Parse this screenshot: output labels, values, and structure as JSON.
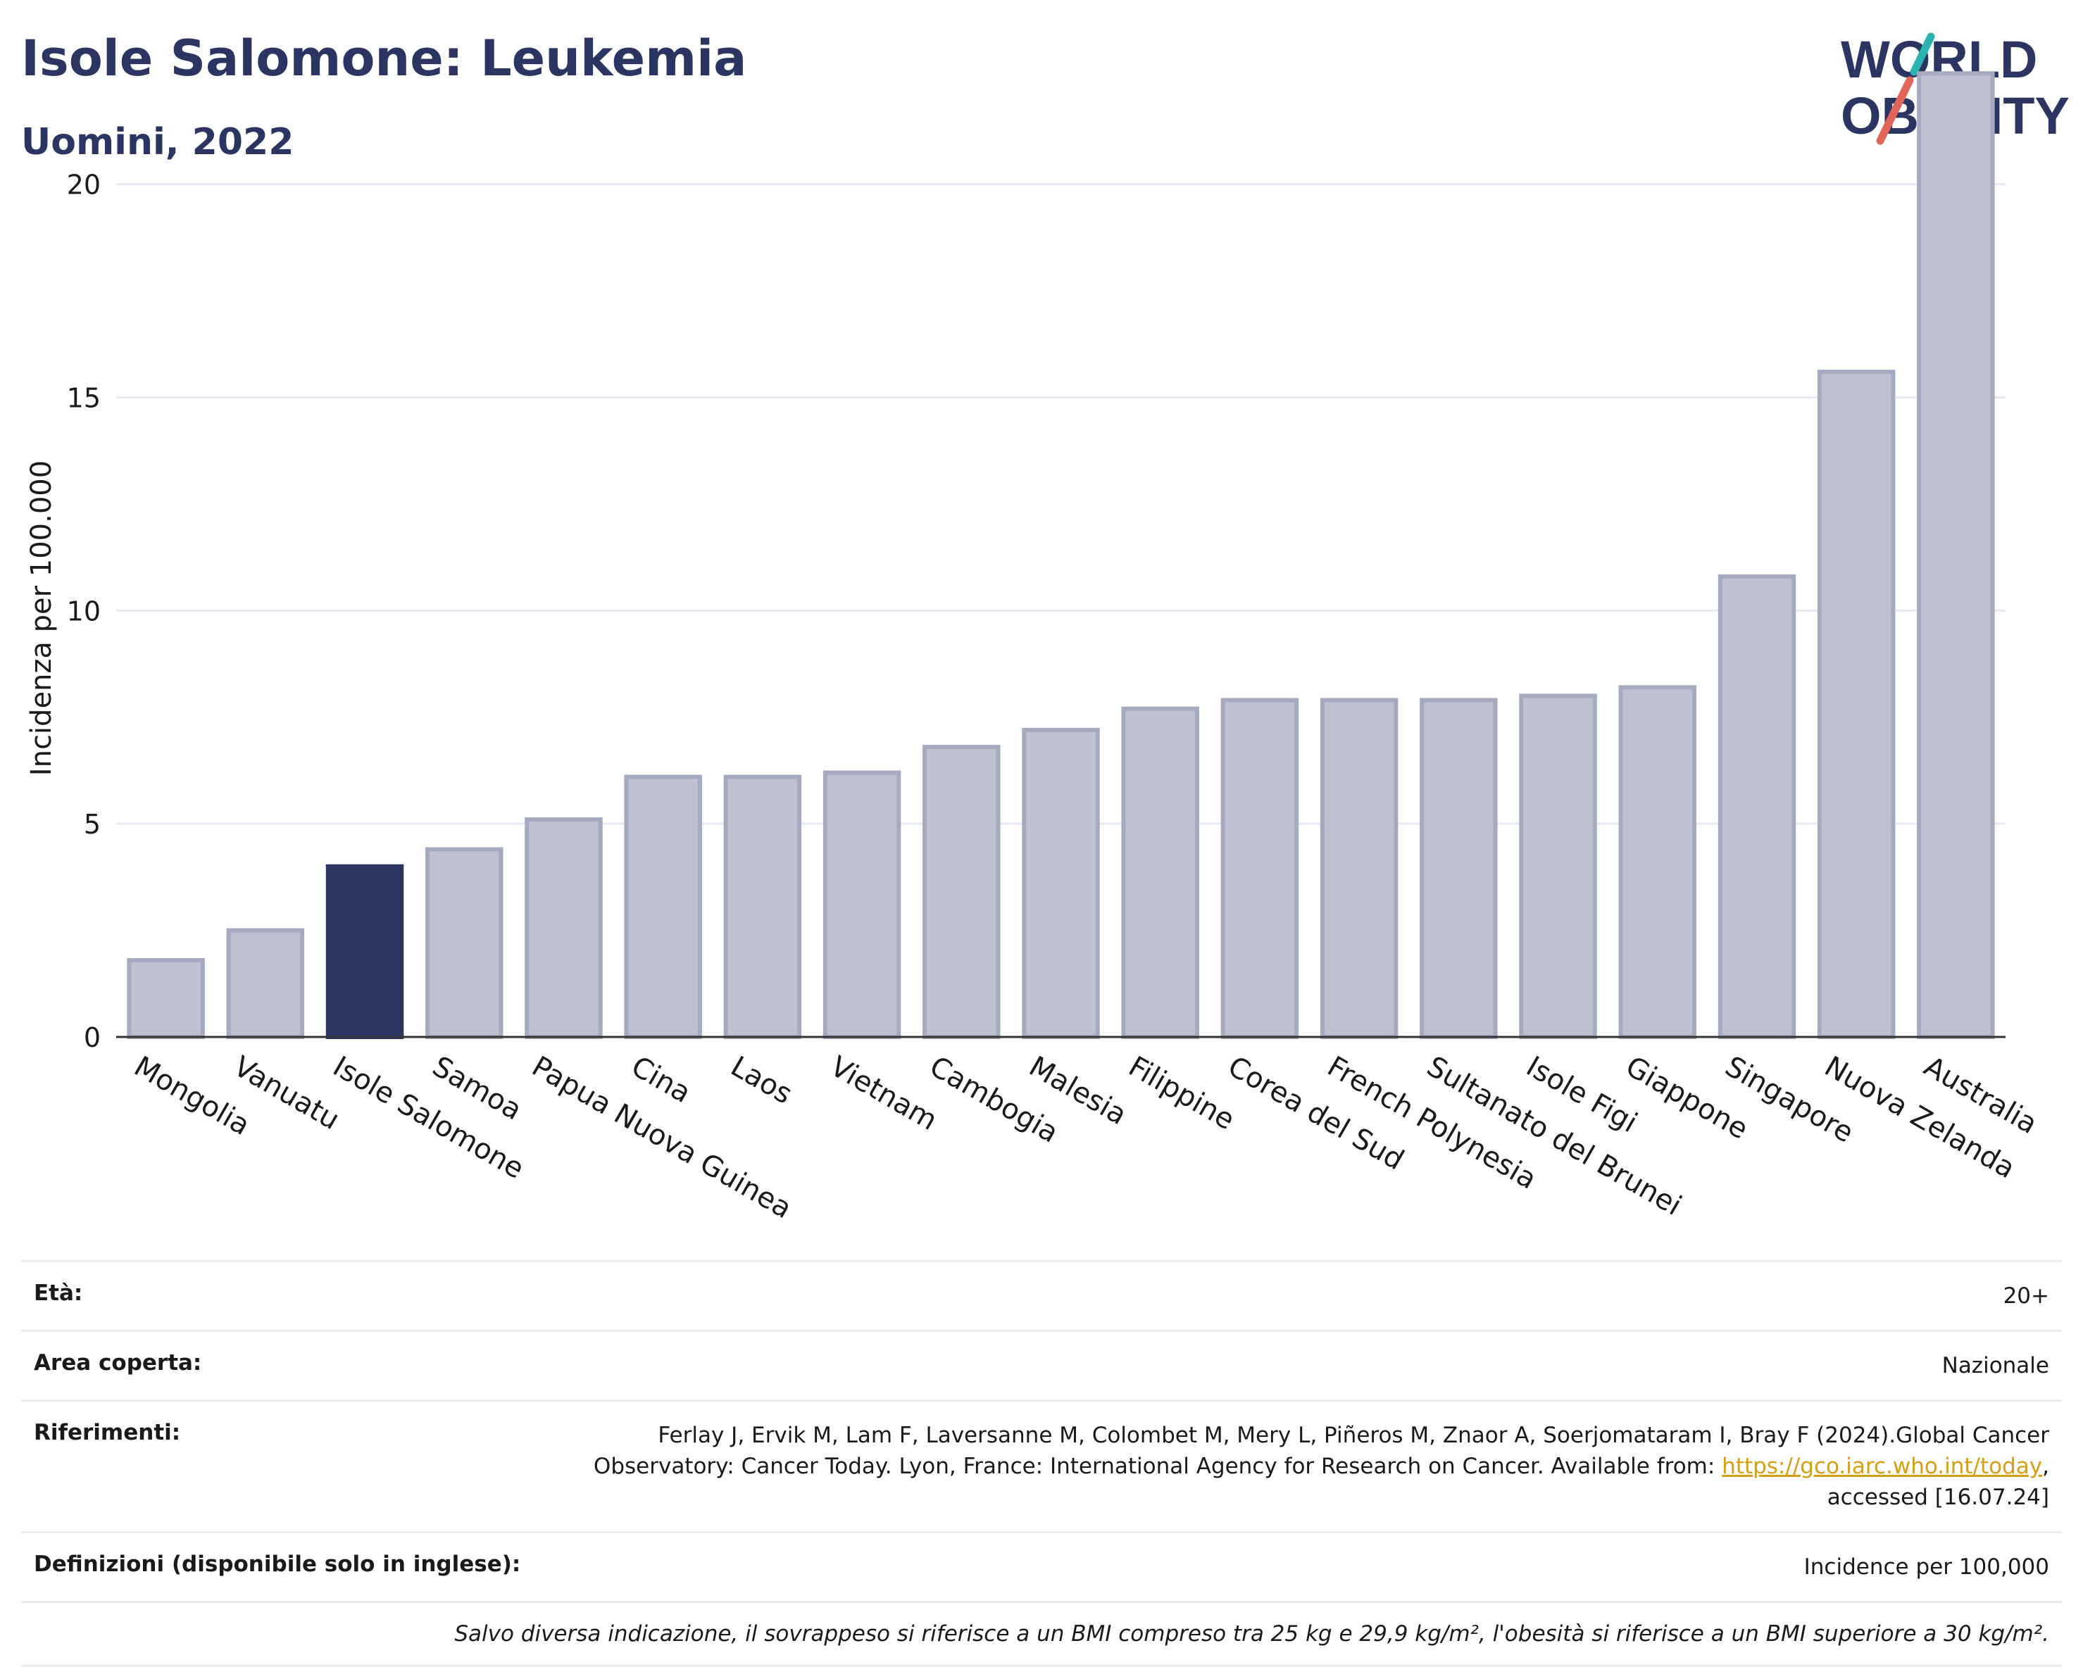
{
  "title": "Isole Salomone: Leukemia",
  "subtitle": "Uomini, 2022",
  "logo": {
    "line1": "WORLD",
    "line2": "OBESITY"
  },
  "colors": {
    "highlight": "#2b3561",
    "bar": "#bec2d0",
    "bar_stroke": "#a5aabf",
    "accent_teal": "#2bb3b1",
    "accent_red": "#e0655a"
  },
  "chart_data": {
    "type": "bar",
    "ylabel": "Incidenza per 100.000",
    "ylim": [
      0,
      23
    ],
    "yticks": [
      0,
      5,
      10,
      15,
      20
    ],
    "grid": true,
    "highlight": "Isole Salomone",
    "categories": [
      "Mongolia",
      "Vanuatu",
      "Isole Salomone",
      "Samoa",
      "Papua Nuova Guinea",
      "Cina",
      "Laos",
      "Vietnam",
      "Cambogia",
      "Malesia",
      "Filippine",
      "Corea del Sud",
      "French Polynesia",
      "Sultanato del Brunei",
      "Isole Figi",
      "Giappone",
      "Singapore",
      "Nuova Zelanda",
      "Australia"
    ],
    "values": [
      1.8,
      2.5,
      4.0,
      4.4,
      5.1,
      6.1,
      6.1,
      6.2,
      6.8,
      7.2,
      7.7,
      7.9,
      7.9,
      7.9,
      8.0,
      8.2,
      10.8,
      15.6,
      22.6
    ]
  },
  "info": {
    "age_label": "Età:",
    "age_value": "20+",
    "area_label": "Area coperta:",
    "area_value": "Nazionale",
    "ref_label": "Riferimenti:",
    "ref_line1": "Ferlay J, Ervik M, Lam F, Laversanne M, Colombet M, Mery L, Piñeros M, Znaor A, Soerjomataram I, Bray F (2024).Global Cancer",
    "ref_line2": "Observatory: Cancer Today. Lyon, France: International Agency for Research on Cancer. Available from: ",
    "ref_link": "https://gco.iarc.who.int/today",
    "ref_comma": ",",
    "ref_line3": "accessed [16.07.24]",
    "def_label": "Definizioni (disponibile solo in inglese):",
    "def_value": "Incidence per 100,000",
    "note": "Salvo diversa indicazione, il sovrappeso si riferisce a un BMI compreso tra 25 kg e 29,9 kg/m², l'obesità si riferisce a un BMI superiore a 30 kg/m²."
  }
}
